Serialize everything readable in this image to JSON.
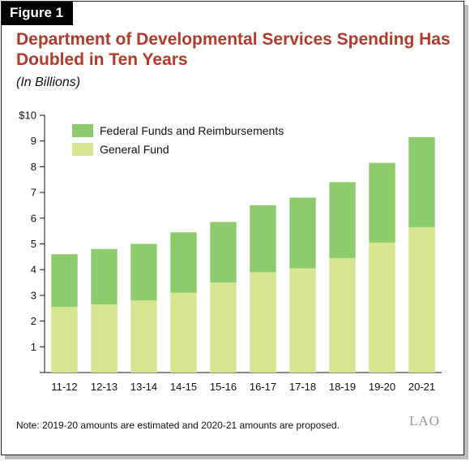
{
  "figure_label": "Figure 1",
  "note": "Note: 2019-20 amounts are estimated and 2020-21 amounts are proposed.",
  "logo_text": "LAO",
  "colors": {
    "title": "#b23a2c",
    "federal": "#8dcb6e",
    "general": "#d6e590"
  },
  "chart_data": {
    "type": "bar",
    "stacked": true,
    "title": "Department of Developmental Services Spending Has Doubled in Ten Years",
    "subtitle": "(In Billions)",
    "xlabel": "",
    "ylabel": "",
    "categories": [
      "11-12",
      "12-13",
      "13-14",
      "14-15",
      "15-16",
      "16-17",
      "17-18",
      "18-19",
      "19-20",
      "20-21"
    ],
    "series": [
      {
        "name": "General Fund",
        "values": [
          2.55,
          2.65,
          2.8,
          3.1,
          3.5,
          3.9,
          4.05,
          4.45,
          5.05,
          5.65
        ],
        "color": "#d6e590"
      },
      {
        "name": "Federal Funds and Reimbursements",
        "values": [
          2.05,
          2.15,
          2.2,
          2.35,
          2.35,
          2.6,
          2.75,
          2.95,
          3.1,
          3.5
        ],
        "color": "#8dcb6e"
      }
    ],
    "ylim": [
      0,
      10
    ],
    "yticks": [
      "",
      "1",
      "2",
      "3",
      "4",
      "5",
      "6",
      "7",
      "8",
      "9",
      "$10"
    ],
    "grid": false,
    "legend": {
      "position": "top-left",
      "entries": [
        "Federal Funds and Reimbursements",
        "General Fund"
      ]
    }
  }
}
